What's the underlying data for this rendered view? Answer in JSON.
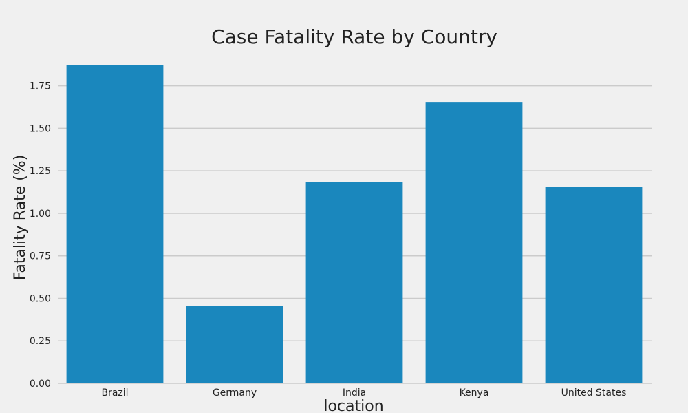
{
  "chart_data": {
    "type": "bar",
    "title": "Case Fatality Rate by Country",
    "xlabel": "location",
    "ylabel": "Fatality Rate (%)",
    "categories": [
      "Brazil",
      "Germany",
      "India",
      "Kenya",
      "United States"
    ],
    "values": [
      1.87,
      0.455,
      1.185,
      1.655,
      1.155
    ],
    "ylim": [
      0,
      1.87
    ],
    "yticks": [
      "0.00",
      "0.25",
      "0.50",
      "0.75",
      "1.00",
      "1.25",
      "1.50",
      "1.75"
    ],
    "grid": true,
    "bar_color": "#1a87bd"
  }
}
